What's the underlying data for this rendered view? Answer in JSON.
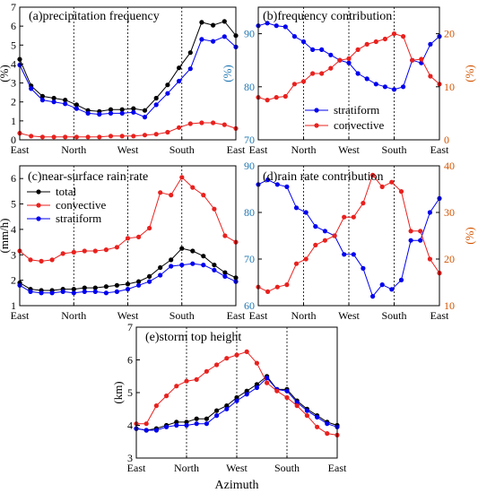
{
  "figure": {
    "xlabel_bottom": "Azimuth"
  },
  "chart_data": [
    {
      "id": "a",
      "type": "line",
      "title": "(a)precipitation frequency",
      "ylabel": "(%)",
      "ylim": [
        0,
        7
      ],
      "yticks": [
        0,
        1,
        2,
        3,
        4,
        5,
        6,
        7
      ],
      "x_labels": [
        "East",
        "North",
        "West",
        "South",
        "East"
      ],
      "legend": [],
      "series": [
        {
          "color": "#000000",
          "axis": "left",
          "values": [
            4.25,
            2.85,
            2.3,
            2.2,
            2.1,
            1.85,
            1.55,
            1.5,
            1.6,
            1.6,
            1.65,
            1.55,
            2.2,
            2.9,
            3.8,
            4.6,
            6.2,
            6.05,
            6.25,
            5.5
          ]
        },
        {
          "color": "#0000ee",
          "axis": "left",
          "values": [
            3.95,
            2.7,
            2.1,
            2.0,
            1.9,
            1.65,
            1.4,
            1.35,
            1.4,
            1.4,
            1.45,
            1.2,
            1.85,
            2.45,
            3.1,
            3.75,
            5.3,
            5.2,
            5.45,
            4.9
          ]
        },
        {
          "color": "#e8211e",
          "axis": "left",
          "values": [
            0.35,
            0.2,
            0.15,
            0.15,
            0.15,
            0.15,
            0.15,
            0.15,
            0.2,
            0.2,
            0.2,
            0.25,
            0.3,
            0.4,
            0.65,
            0.85,
            0.9,
            0.9,
            0.8,
            0.6
          ]
        }
      ]
    },
    {
      "id": "b",
      "type": "line",
      "title": "(b)frequency contribution",
      "ylabel": "(%)",
      "ylim": [
        70,
        95
      ],
      "yticks": [
        70,
        80,
        90
      ],
      "ylabel_right": "(%)",
      "ylim_right": [
        0,
        25
      ],
      "yticks_right": [
        0,
        10,
        20
      ],
      "x_labels": [
        "East",
        "North",
        "West",
        "South",
        "East"
      ],
      "legend": [
        {
          "label": "stratiform",
          "color": "#0000ee"
        },
        {
          "label": "convective",
          "color": "#e8211e"
        }
      ],
      "series": [
        {
          "color": "#0000ee",
          "axis": "left",
          "values": [
            91.5,
            92,
            91.5,
            91.3,
            89.5,
            88.5,
            87,
            87,
            86,
            85,
            84.5,
            82.5,
            81.5,
            80.5,
            80,
            79.5,
            80,
            85,
            84.5,
            88,
            89.5
          ]
        },
        {
          "color": "#e8211e",
          "axis": "right",
          "values": [
            8,
            7.5,
            8,
            8.2,
            10.5,
            11,
            12.5,
            12.5,
            13.5,
            15,
            15.3,
            17,
            18,
            18.5,
            19,
            20,
            19.5,
            15,
            15.2,
            12,
            10.5
          ]
        }
      ]
    },
    {
      "id": "c",
      "type": "line",
      "title": "(c)near-surface rain rate",
      "ylabel": "(mm/h)",
      "ylim": [
        1,
        6.5
      ],
      "yticks": [
        1,
        2,
        3,
        4,
        5,
        6
      ],
      "x_labels": [
        "East",
        "North",
        "West",
        "South",
        "East"
      ],
      "legend": [
        {
          "label": "total",
          "color": "#000000"
        },
        {
          "label": "convective",
          "color": "#e8211e"
        },
        {
          "label": "stratiform",
          "color": "#0000ee"
        }
      ],
      "series": [
        {
          "color": "#000000",
          "axis": "left",
          "values": [
            1.9,
            1.65,
            1.6,
            1.6,
            1.65,
            1.65,
            1.7,
            1.7,
            1.75,
            1.8,
            1.85,
            1.95,
            2.15,
            2.5,
            2.8,
            3.25,
            3.15,
            2.95,
            2.6,
            2.3,
            2.1
          ]
        },
        {
          "color": "#e8211e",
          "axis": "left",
          "values": [
            3.15,
            2.8,
            2.75,
            2.8,
            3.05,
            3.1,
            3.15,
            3.15,
            3.2,
            3.3,
            3.65,
            3.7,
            4.05,
            5.45,
            5.35,
            6.05,
            5.65,
            5.35,
            4.8,
            3.75,
            3.5
          ]
        },
        {
          "color": "#0000ee",
          "axis": "left",
          "values": [
            1.8,
            1.55,
            1.5,
            1.5,
            1.55,
            1.5,
            1.55,
            1.55,
            1.5,
            1.55,
            1.65,
            1.8,
            1.95,
            2.2,
            2.55,
            2.6,
            2.65,
            2.6,
            2.4,
            2.15,
            1.95
          ]
        }
      ]
    },
    {
      "id": "d",
      "type": "line",
      "title": "(d)rain rate contribution",
      "ylabel": "",
      "ylim": [
        60,
        90
      ],
      "yticks": [
        60,
        70,
        80,
        90
      ],
      "ylabel_right": "(%)",
      "ylim_right": [
        10,
        40
      ],
      "yticks_right": [
        10,
        20,
        30,
        40
      ],
      "x_labels": [
        "East",
        "North",
        "West",
        "South",
        "East"
      ],
      "legend": [],
      "series": [
        {
          "color": "#0000ee",
          "axis": "left",
          "values": [
            86,
            87,
            86,
            85.5,
            81,
            80,
            77,
            76,
            75,
            71,
            71,
            68,
            62,
            64.5,
            63.5,
            65.5,
            74,
            74,
            80,
            83
          ]
        },
        {
          "color": "#e8211e",
          "axis": "right",
          "values": [
            14,
            13,
            14,
            14.5,
            19,
            20,
            23,
            24,
            25,
            29,
            29,
            32,
            38,
            35.5,
            36.5,
            34.5,
            26,
            26,
            20,
            17
          ]
        }
      ]
    },
    {
      "id": "e",
      "type": "line",
      "title": "(e)storm top height",
      "ylabel": "(km)",
      "ylim": [
        3,
        7
      ],
      "yticks": [
        3,
        4,
        5,
        6,
        7
      ],
      "x_labels": [
        "East",
        "North",
        "West",
        "South",
        "East"
      ],
      "xlabel": "Azimuth",
      "legend": [],
      "series": [
        {
          "color": "#000000",
          "axis": "left",
          "values": [
            3.9,
            3.85,
            3.9,
            4.0,
            4.1,
            4.1,
            4.2,
            4.2,
            4.45,
            4.6,
            4.85,
            5.05,
            5.25,
            5.5,
            5.1,
            5.1,
            4.75,
            4.5,
            4.3,
            4.1,
            4.0
          ]
        },
        {
          "color": "#0000ee",
          "axis": "left",
          "values": [
            3.9,
            3.85,
            3.85,
            3.95,
            4.0,
            4.0,
            4.05,
            4.05,
            4.3,
            4.5,
            4.75,
            4.95,
            5.15,
            5.45,
            5.1,
            5.05,
            4.7,
            4.45,
            4.25,
            4.05,
            3.95
          ]
        },
        {
          "color": "#e8211e",
          "axis": "left",
          "values": [
            4.05,
            4.05,
            4.6,
            4.9,
            5.2,
            5.35,
            5.4,
            5.65,
            5.85,
            6.05,
            6.15,
            6.25,
            5.9,
            5.3,
            5.05,
            4.85,
            4.6,
            4.3,
            3.95,
            3.75,
            3.7
          ]
        }
      ]
    }
  ]
}
